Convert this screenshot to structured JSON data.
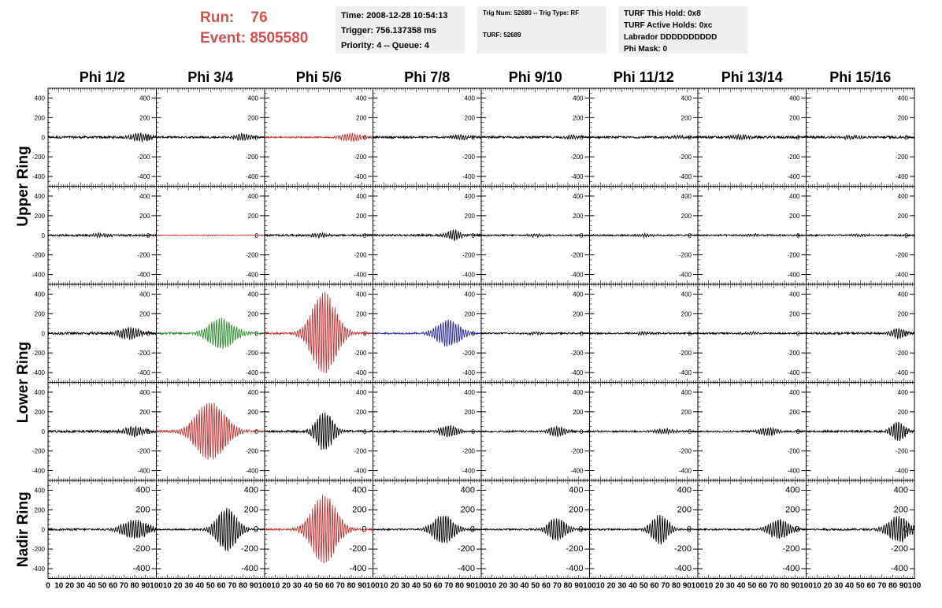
{
  "header": {
    "run_label": "Run:",
    "run_value": "76",
    "event_label": "Event:",
    "event_value": "8505580",
    "time": "Time: 2008-12-28 10:54:13",
    "trigger": "Trigger: 756.137358 ms",
    "priority": "Priority: 4 -- Queue: 4",
    "trig_num": "Trig Num: 52680 -- Trig Type: RF",
    "turf": "TURF: 52689",
    "turf_this_hold": "TURF This Hold: 0x8",
    "turf_active_holds": "TURF Active Holds: 0xc",
    "labrador": "Labrador DDDDDDDDDD",
    "phi_mask": "Phi Mask: 0"
  },
  "colors": {
    "header_text": "#d2514d",
    "black": "#000000",
    "red": "#c0302e",
    "green": "#2a8a2a",
    "blue": "#26269a",
    "box_bg": "#efefef"
  },
  "chart_data": {
    "type": "line",
    "columns": [
      "Phi 1/2",
      "Phi 3/4",
      "Phi 5/6",
      "Phi 7/8",
      "Phi 9/10",
      "Phi 11/12",
      "Phi 13/14",
      "Phi 15/16"
    ],
    "row_labels": [
      "Upper Ring",
      "Lower Ring",
      "Nadir Ring"
    ],
    "x_ticks": [
      "0",
      "10",
      "20",
      "30",
      "40",
      "50",
      "60",
      "70",
      "80",
      "90",
      "100"
    ],
    "y_ticks": [
      "400",
      "200",
      "0",
      "-200",
      "-400"
    ],
    "xlim": [
      0,
      100
    ],
    "ylim": [
      -500,
      500
    ],
    "traces": [
      [
        {
          "amp": 40,
          "center": 85,
          "width": 10,
          "noise": 12,
          "color": "black"
        },
        {
          "amp": 35,
          "center": 80,
          "width": 10,
          "noise": 10,
          "color": "black"
        },
        {
          "amp": 40,
          "center": 80,
          "width": 12,
          "noise": 8,
          "color": "red"
        },
        {
          "amp": 25,
          "center": 80,
          "width": 10,
          "noise": 10,
          "color": "black"
        },
        {
          "amp": 18,
          "center": 85,
          "width": 8,
          "noise": 10,
          "color": "black"
        },
        {
          "amp": 15,
          "center": 80,
          "width": 8,
          "noise": 10,
          "color": "black"
        },
        {
          "amp": 20,
          "center": 40,
          "width": 10,
          "noise": 12,
          "color": "black"
        },
        {
          "amp": 15,
          "center": 40,
          "width": 10,
          "noise": 12,
          "color": "black"
        }
      ],
      [
        {
          "amp": 20,
          "center": 50,
          "width": 10,
          "noise": 10,
          "color": "black"
        },
        {
          "amp": 6,
          "center": 50,
          "width": 10,
          "noise": 3,
          "color": "red"
        },
        {
          "amp": 20,
          "center": 50,
          "width": 10,
          "noise": 10,
          "color": "black"
        },
        {
          "amp": 50,
          "center": 75,
          "width": 8,
          "noise": 10,
          "color": "black"
        },
        {
          "amp": 15,
          "center": 50,
          "width": 10,
          "noise": 8,
          "color": "black"
        },
        {
          "amp": 12,
          "center": 50,
          "width": 10,
          "noise": 8,
          "color": "black"
        },
        {
          "amp": 12,
          "center": 50,
          "width": 10,
          "noise": 8,
          "color": "black"
        },
        {
          "amp": 10,
          "center": 50,
          "width": 10,
          "noise": 8,
          "color": "black"
        }
      ],
      [
        {
          "amp": 60,
          "center": 75,
          "width": 12,
          "noise": 12,
          "color": "black"
        },
        {
          "amp": 160,
          "center": 60,
          "width": 15,
          "noise": 10,
          "color": "green"
        },
        {
          "amp": 420,
          "center": 55,
          "width": 15,
          "noise": 10,
          "color": "red"
        },
        {
          "amp": 140,
          "center": 70,
          "width": 14,
          "noise": 8,
          "color": "blue"
        },
        {
          "amp": 12,
          "center": 50,
          "width": 10,
          "noise": 8,
          "color": "black"
        },
        {
          "amp": 12,
          "center": 50,
          "width": 10,
          "noise": 8,
          "color": "black"
        },
        {
          "amp": 12,
          "center": 50,
          "width": 10,
          "noise": 8,
          "color": "black"
        },
        {
          "amp": 50,
          "center": 85,
          "width": 8,
          "noise": 10,
          "color": "black"
        }
      ],
      [
        {
          "amp": 50,
          "center": 80,
          "width": 12,
          "noise": 12,
          "color": "black"
        },
        {
          "amp": 300,
          "center": 50,
          "width": 18,
          "noise": 10,
          "color": "red"
        },
        {
          "amp": 200,
          "center": 55,
          "width": 10,
          "noise": 10,
          "color": "black"
        },
        {
          "amp": 60,
          "center": 70,
          "width": 10,
          "noise": 8,
          "color": "black"
        },
        {
          "amp": 50,
          "center": 70,
          "width": 10,
          "noise": 8,
          "color": "black"
        },
        {
          "amp": 25,
          "center": 70,
          "width": 10,
          "noise": 8,
          "color": "black"
        },
        {
          "amp": 40,
          "center": 65,
          "width": 10,
          "noise": 8,
          "color": "black"
        },
        {
          "amp": 100,
          "center": 85,
          "width": 8,
          "noise": 10,
          "color": "black"
        }
      ],
      [
        {
          "amp": 100,
          "center": 80,
          "width": 15,
          "noise": 10,
          "color": "black"
        },
        {
          "amp": 220,
          "center": 65,
          "width": 12,
          "noise": 8,
          "color": "black"
        },
        {
          "amp": 350,
          "center": 55,
          "width": 15,
          "noise": 10,
          "color": "red"
        },
        {
          "amp": 150,
          "center": 65,
          "width": 12,
          "noise": 8,
          "color": "black"
        },
        {
          "amp": 120,
          "center": 70,
          "width": 10,
          "noise": 8,
          "color": "black"
        },
        {
          "amp": 150,
          "center": 65,
          "width": 10,
          "noise": 8,
          "color": "black"
        },
        {
          "amp": 100,
          "center": 75,
          "width": 12,
          "noise": 8,
          "color": "black"
        },
        {
          "amp": 140,
          "center": 85,
          "width": 12,
          "noise": 10,
          "color": "black"
        }
      ]
    ]
  }
}
